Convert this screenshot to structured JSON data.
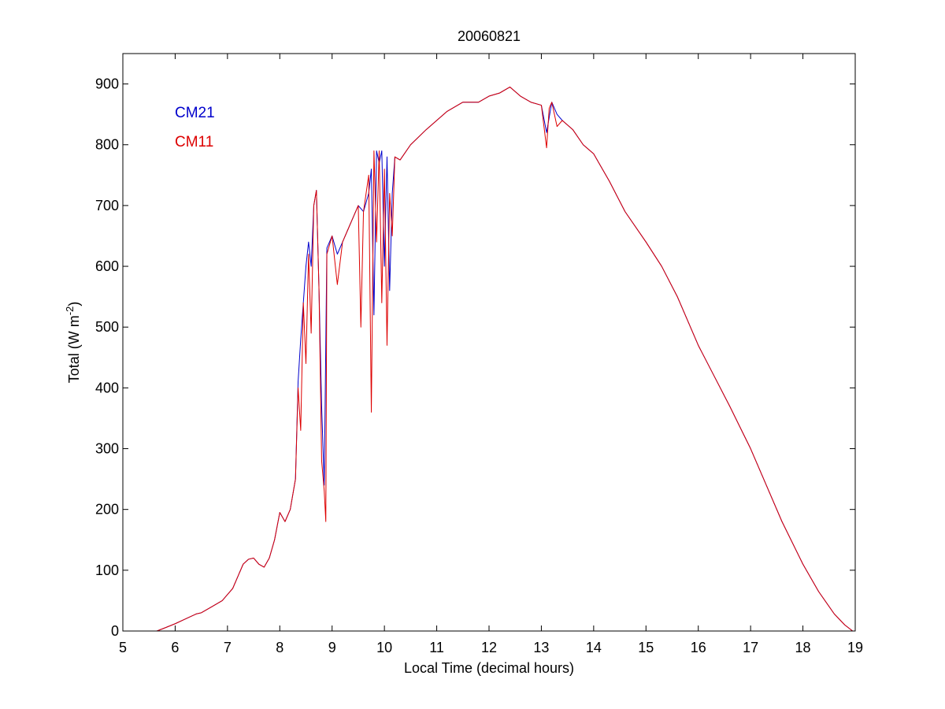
{
  "chart_data": {
    "type": "line",
    "title": "20060821",
    "xlabel": "Local Time (decimal hours)",
    "ylabel_main": "Total (W m",
    "ylabel_sup": "-2",
    "ylabel_close": ")",
    "xlim": [
      5,
      19
    ],
    "ylim": [
      0,
      950
    ],
    "x_ticks": [
      5,
      6,
      7,
      8,
      9,
      10,
      11,
      12,
      13,
      14,
      15,
      16,
      17,
      18,
      19
    ],
    "x_tick_labels": [
      "5",
      "6",
      "7",
      "8",
      "9",
      "10",
      "11",
      "12",
      "13",
      "14",
      "15",
      "16",
      "17",
      "18",
      "19"
    ],
    "y_ticks": [
      0,
      100,
      200,
      300,
      400,
      500,
      600,
      700,
      800,
      900
    ],
    "y_tick_labels": [
      "0",
      "100",
      "200",
      "300",
      "400",
      "500",
      "600",
      "700",
      "800",
      "900"
    ],
    "grid": false,
    "legend_position": "top-left",
    "series": [
      {
        "name": "CM21",
        "color": "#0000cc",
        "x": [
          5.65,
          5.8,
          6.0,
          6.2,
          6.4,
          6.5,
          6.7,
          6.9,
          7.0,
          7.1,
          7.2,
          7.3,
          7.4,
          7.5,
          7.6,
          7.7,
          7.8,
          7.9,
          8.0,
          8.1,
          8.2,
          8.3,
          8.35,
          8.4,
          8.45,
          8.5,
          8.55,
          8.6,
          8.65,
          8.7,
          8.75,
          8.8,
          8.85,
          8.9,
          9.0,
          9.1,
          9.2,
          9.3,
          9.4,
          9.5,
          9.6,
          9.7,
          9.75,
          9.8,
          9.85,
          9.9,
          9.95,
          10.0,
          10.05,
          10.1,
          10.15,
          10.2,
          10.3,
          10.5,
          10.8,
          11.0,
          11.2,
          11.5,
          11.8,
          12.0,
          12.2,
          12.4,
          12.6,
          12.8,
          13.0,
          13.1,
          13.2,
          13.3,
          13.4,
          13.6,
          13.8,
          14.0,
          14.3,
          14.6,
          15.0,
          15.3,
          15.6,
          16.0,
          16.3,
          16.6,
          17.0,
          17.3,
          17.6,
          18.0,
          18.3,
          18.6,
          18.8,
          18.95
        ],
        "y": [
          0,
          5,
          12,
          20,
          28,
          30,
          40,
          50,
          60,
          70,
          90,
          110,
          118,
          120,
          110,
          105,
          120,
          150,
          195,
          180,
          200,
          250,
          410,
          480,
          540,
          600,
          640,
          600,
          700,
          725,
          560,
          370,
          240,
          630,
          650,
          620,
          640,
          660,
          680,
          700,
          690,
          720,
          760,
          520,
          790,
          770,
          790,
          600,
          780,
          560,
          720,
          780,
          775,
          800,
          825,
          840,
          855,
          870,
          870,
          880,
          885,
          895,
          880,
          870,
          865,
          820,
          870,
          850,
          840,
          825,
          800,
          785,
          740,
          690,
          640,
          600,
          550,
          470,
          420,
          370,
          300,
          240,
          180,
          110,
          65,
          28,
          10,
          0
        ]
      },
      {
        "name": "CM11",
        "color": "#dd0000",
        "x": [
          5.65,
          5.8,
          6.0,
          6.2,
          6.4,
          6.5,
          6.7,
          6.9,
          7.0,
          7.1,
          7.2,
          7.3,
          7.4,
          7.5,
          7.6,
          7.7,
          7.8,
          7.9,
          8.0,
          8.1,
          8.2,
          8.3,
          8.35,
          8.4,
          8.45,
          8.5,
          8.55,
          8.6,
          8.65,
          8.7,
          8.75,
          8.8,
          8.85,
          8.88,
          8.9,
          9.0,
          9.1,
          9.2,
          9.3,
          9.4,
          9.5,
          9.55,
          9.6,
          9.7,
          9.75,
          9.8,
          9.85,
          9.9,
          9.95,
          10.0,
          10.05,
          10.1,
          10.15,
          10.2,
          10.3,
          10.5,
          10.8,
          11.0,
          11.2,
          11.5,
          11.8,
          12.0,
          12.2,
          12.4,
          12.6,
          12.8,
          13.0,
          13.1,
          13.15,
          13.2,
          13.3,
          13.4,
          13.6,
          13.8,
          14.0,
          14.3,
          14.6,
          15.0,
          15.3,
          15.6,
          16.0,
          16.3,
          16.6,
          17.0,
          17.3,
          17.6,
          18.0,
          18.3,
          18.6,
          18.8,
          18.95
        ],
        "y": [
          0,
          5,
          12,
          20,
          28,
          30,
          40,
          50,
          60,
          70,
          90,
          110,
          118,
          120,
          110,
          105,
          120,
          150,
          195,
          180,
          200,
          250,
          400,
          330,
          540,
          440,
          620,
          490,
          700,
          725,
          560,
          280,
          230,
          180,
          620,
          650,
          570,
          640,
          660,
          680,
          700,
          500,
          690,
          750,
          360,
          790,
          640,
          790,
          540,
          760,
          470,
          720,
          650,
          780,
          775,
          800,
          825,
          840,
          855,
          870,
          870,
          880,
          885,
          895,
          880,
          870,
          865,
          795,
          860,
          870,
          830,
          840,
          825,
          800,
          785,
          740,
          690,
          640,
          600,
          550,
          470,
          420,
          370,
          300,
          240,
          180,
          110,
          65,
          28,
          10,
          0
        ]
      }
    ],
    "legend": [
      "CM21",
      "CM11"
    ]
  }
}
